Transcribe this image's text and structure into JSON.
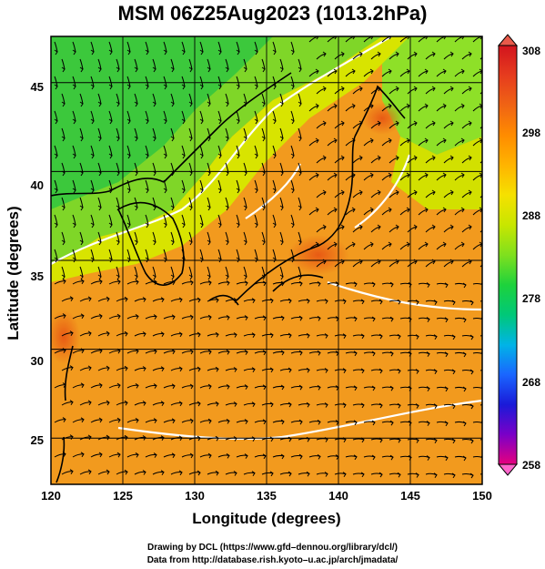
{
  "title": "MSM 06Z25Aug2023 (1013.2hPa)",
  "map": {
    "xlabel": "Longitude (degrees)",
    "ylabel": "Latitude  (degrees)",
    "lon_range": [
      120,
      150
    ],
    "lat_range": [
      22.4,
      47.6
    ],
    "lon_ticks": [
      "120",
      "125",
      "130",
      "135",
      "140",
      "145",
      "150"
    ],
    "lat_ticks": [
      "25",
      "30",
      "35",
      "40",
      "45"
    ],
    "gridlines": true,
    "field": "temperature (K)",
    "overlay": "streamlines of surface wind",
    "coastline_color": "#000000",
    "contour_color": "#ffffff"
  },
  "colorbar": {
    "min": 258,
    "max": 308,
    "ticks": [
      "308",
      "298",
      "288",
      "278",
      "268",
      "258"
    ],
    "colors": [
      "#e6007e",
      "#7a00c8",
      "#1a1ad8",
      "#1a66ff",
      "#00b4e6",
      "#00c878",
      "#1ed23c",
      "#7fe01e",
      "#c8e600",
      "#f5e100",
      "#ffb400",
      "#ff8c00",
      "#f06414",
      "#e63c1e",
      "#d2141e"
    ]
  },
  "credits": {
    "line1": "Drawing by DCL (https://www.gfd–dennou.org/library/dcl/)",
    "line2": "Data from http://database.rish.kyoto–u.ac.jp/arch/jmadata/"
  }
}
